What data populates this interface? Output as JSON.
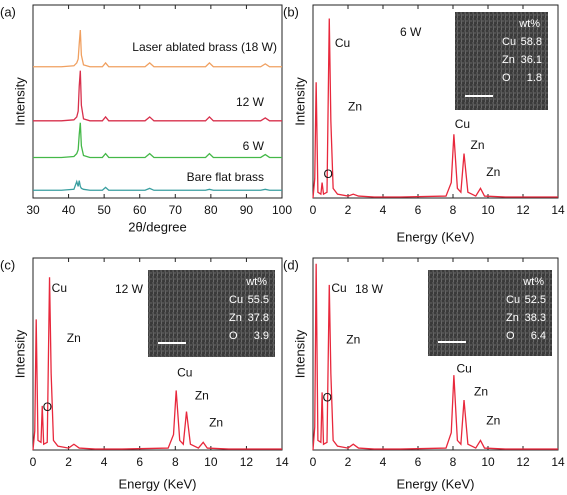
{
  "chart_data": [
    {
      "type": "line",
      "panel_label": "(a)",
      "xlabel": "2θ/degree",
      "ylabel": "Intensity",
      "xlim": [
        30,
        100
      ],
      "xticks": [
        30,
        40,
        50,
        60,
        70,
        80,
        90,
        100
      ],
      "ylim": [
        0,
        100
      ],
      "x": [
        30,
        38,
        41.5,
        42.3,
        42.7,
        43.0,
        43.3,
        43.6,
        44.2,
        46,
        49.5,
        50.4,
        51.3,
        61.5,
        62.8,
        64,
        78.5,
        79.6,
        80.7,
        94,
        95.3,
        96.5,
        100
      ],
      "series": [
        {
          "name": "Laser ablated brass (18 W)",
          "color": "#f0a060",
          "values": [
            68,
            68,
            68.5,
            70,
            72,
            80,
            87,
            74,
            69,
            68,
            68,
            70,
            68,
            68,
            70,
            68,
            68,
            70,
            68,
            68,
            69.5,
            68,
            68
          ]
        },
        {
          "name": "12 W",
          "color": "#d8304c",
          "values": [
            40,
            40,
            40.5,
            42,
            45,
            58,
            66,
            48,
            41,
            40,
            40,
            42,
            40,
            40,
            42,
            40,
            40,
            42,
            40,
            40,
            41.5,
            40,
            40
          ]
        },
        {
          "name": "6 W",
          "color": "#44b848",
          "values": [
            21,
            21,
            21.5,
            23,
            25,
            33,
            39,
            27,
            22,
            21,
            21,
            23,
            21,
            21,
            23,
            21,
            21,
            23,
            21,
            21,
            22.5,
            21,
            21
          ]
        },
        {
          "name": "Bare flat brass",
          "color": "#3a9fa0",
          "values": [
            4,
            4,
            4.5,
            8.5,
            6,
            9,
            6,
            5,
            4.5,
            4,
            4,
            5.5,
            4,
            4,
            5,
            4,
            4,
            4.5,
            4,
            4,
            4.5,
            4,
            4
          ]
        }
      ]
    },
    {
      "type": "line",
      "panel_label": "(b)",
      "label": "6 W",
      "xlabel": "Energy (KeV)",
      "ylabel": "Intensity",
      "xlim": [
        0,
        14
      ],
      "xticks": [
        0,
        2,
        4,
        6,
        8,
        10,
        12,
        14
      ],
      "ylim": [
        0,
        100
      ],
      "x": [
        0,
        0.1,
        0.18,
        0.28,
        0.45,
        0.52,
        0.6,
        0.8,
        0.93,
        1.02,
        1.15,
        1.4,
        2.0,
        2.3,
        2.6,
        3.5,
        5,
        7.6,
        7.9,
        8.05,
        8.25,
        8.45,
        8.63,
        8.85,
        9.3,
        9.57,
        9.8,
        11,
        14
      ],
      "series": [
        {
          "name": "6 W",
          "color": "#e8283c",
          "values": [
            0,
            10,
            60,
            3,
            2,
            8,
            2,
            3,
            93,
            40,
            5,
            2,
            1,
            2,
            1,
            0.5,
            0.5,
            1,
            8,
            33,
            5,
            3,
            23,
            3,
            1,
            5,
            1,
            0.5,
            0.5
          ]
        }
      ],
      "annotations": [
        "Cu",
        "Zn",
        "O",
        "Cu",
        "Zn",
        "Zn"
      ],
      "inset": {
        "header": "wt%",
        "rows": [
          {
            "element": "Cu",
            "value": 58.8
          },
          {
            "element": "Zn",
            "value": 36.1
          },
          {
            "element": "O",
            "value": 1.8
          }
        ]
      }
    },
    {
      "type": "line",
      "panel_label": "(c)",
      "label": "12 W",
      "xlabel": "Energy (KeV)",
      "ylabel": "Intensity",
      "xlim": [
        0,
        14
      ],
      "xticks": [
        0,
        2,
        4,
        6,
        8,
        10,
        12,
        14
      ],
      "ylim": [
        0,
        100
      ],
      "x": [
        0,
        0.1,
        0.18,
        0.28,
        0.45,
        0.52,
        0.6,
        0.8,
        0.93,
        1.02,
        1.15,
        1.4,
        2.0,
        2.3,
        2.6,
        3.5,
        5,
        7.6,
        7.9,
        8.05,
        8.25,
        8.45,
        8.63,
        8.85,
        9.3,
        9.57,
        9.8,
        11,
        14
      ],
      "series": [
        {
          "name": "12 W",
          "color": "#e8283c",
          "values": [
            0,
            10,
            68,
            5,
            4,
            23,
            3,
            4,
            90,
            40,
            5,
            2,
            1,
            3,
            1,
            0.5,
            0.5,
            1,
            8,
            31,
            5,
            3,
            20,
            3,
            1,
            4,
            1,
            0.5,
            0.5
          ]
        }
      ],
      "annotations": [
        "Cu",
        "Zn",
        "O",
        "Cu",
        "Zn",
        "Zn"
      ],
      "inset": {
        "header": "wt%",
        "rows": [
          {
            "element": "Cu",
            "value": 55.5
          },
          {
            "element": "Zn",
            "value": 37.8
          },
          {
            "element": "O",
            "value": 3.9
          }
        ]
      }
    },
    {
      "type": "line",
      "panel_label": "(d)",
      "label": "18 W",
      "xlabel": "Energy (KeV)",
      "ylabel": "Intensity",
      "xlim": [
        0,
        14
      ],
      "xticks": [
        0,
        2,
        4,
        6,
        8,
        10,
        12,
        14
      ],
      "ylim": [
        0,
        100
      ],
      "x": [
        0,
        0.1,
        0.18,
        0.28,
        0.45,
        0.52,
        0.6,
        0.8,
        0.93,
        1.02,
        1.15,
        1.4,
        2.0,
        2.3,
        2.6,
        3.5,
        5,
        7.6,
        7.9,
        8.05,
        8.25,
        8.45,
        8.63,
        8.85,
        9.3,
        9.57,
        9.8,
        11,
        14
      ],
      "series": [
        {
          "name": "18 W",
          "color": "#e8283c",
          "values": [
            0,
            12,
            97,
            5,
            4,
            30,
            3,
            4,
            86,
            40,
            5,
            2,
            1,
            3,
            1,
            0.5,
            0.5,
            1,
            9,
            39,
            5,
            3,
            26,
            3,
            1,
            5,
            1,
            0.5,
            0.5
          ]
        }
      ],
      "annotations": [
        "Cu",
        "Zn",
        "O",
        "Cu",
        "Zn",
        "Zn"
      ],
      "inset": {
        "header": "wt%",
        "rows": [
          {
            "element": "Cu",
            "value": 52.5
          },
          {
            "element": "Zn",
            "value": 38.3
          },
          {
            "element": "O",
            "value": 6.4
          }
        ]
      }
    }
  ]
}
